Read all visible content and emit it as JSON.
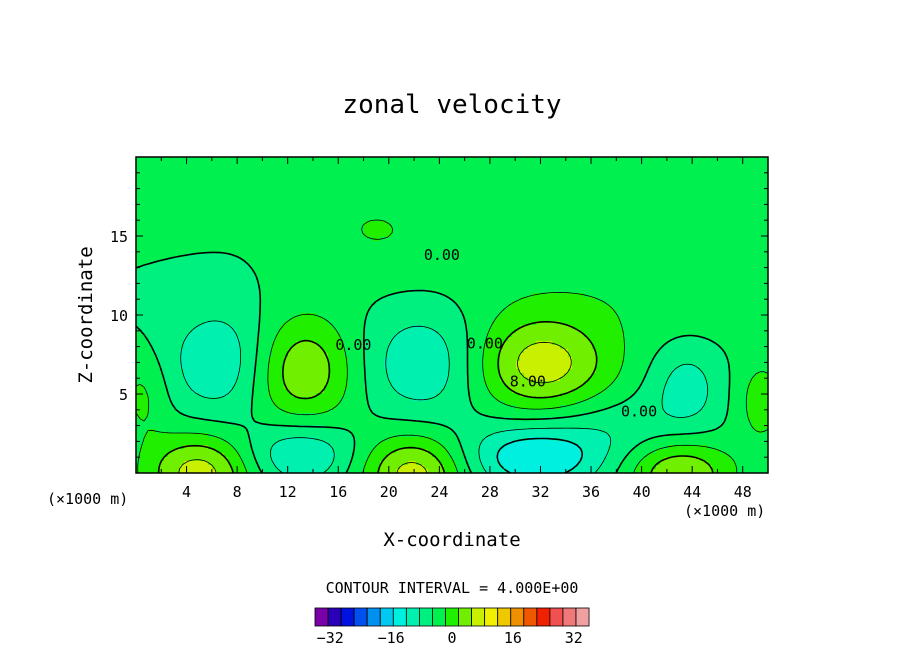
{
  "chart_data": {
    "type": "contour",
    "title": "zonal velocity",
    "xlabel": "X-coordinate",
    "ylabel": "Z-coordinate",
    "x_unit": "(×1000 m)",
    "y_unit": "(×1000 m)",
    "xlim": [
      0,
      50
    ],
    "ylim": [
      0,
      20
    ],
    "x_ticks": [
      4,
      8,
      12,
      16,
      20,
      24,
      28,
      32,
      36,
      40,
      44,
      48
    ],
    "y_ticks": [
      5,
      10,
      15
    ],
    "contour_interval_text": "CONTOUR INTERVAL = 4.000E+00",
    "contour_labels": [
      {
        "text": "0.00",
        "x": 24.2,
        "z": 13.8
      },
      {
        "text": "0.00",
        "x": 17.2,
        "z": 8.1
      },
      {
        "text": "0.00",
        "x": 27.6,
        "z": 8.2
      },
      {
        "text": "8.00",
        "x": 31.0,
        "z": 5.8
      },
      {
        "text": "0.00",
        "x": 39.8,
        "z": 3.9
      }
    ],
    "colorbar": {
      "min": -36,
      "max": 36,
      "step": 4,
      "tick_values": [
        -32,
        -16,
        0,
        16,
        32
      ],
      "tick_labels": [
        "−32",
        "−16",
        "0",
        "16",
        "32"
      ],
      "colors": [
        "#7a00a8",
        "#2a00b8",
        "#0012e0",
        "#0050f0",
        "#0090f0",
        "#00c8f0",
        "#00f0e0",
        "#00f0b0",
        "#00f080",
        "#00f050",
        "#20f000",
        "#70f000",
        "#c8f000",
        "#f0f000",
        "#f0c800",
        "#f09000",
        "#f05800",
        "#f02000",
        "#f05050",
        "#f07878",
        "#f0a0a0"
      ]
    },
    "fields": [
      {
        "level": "positive",
        "x": 0,
        "z": 18.0,
        "value": 4,
        "sx": 6,
        "sz": 1.6
      },
      {
        "level": "positive",
        "x": 19,
        "z": 15.5,
        "value": 4,
        "sx": 4,
        "sz": 2.0
      },
      {
        "level": "positive",
        "x": 40,
        "z": 11.5,
        "value": 3,
        "sx": 12,
        "sz": 2.5
      },
      {
        "level": "positive",
        "x": 13,
        "z": 6.5,
        "value": 12,
        "sx": 3.0,
        "sz": 2.5
      },
      {
        "level": "positive",
        "x": 32,
        "z": 6.8,
        "value": 14,
        "sx": 4.0,
        "sz": 2.2
      },
      {
        "level": "positive",
        "x": 5,
        "z": 0.0,
        "value": 14,
        "sx": 3.0,
        "sz": 1.8
      },
      {
        "level": "positive",
        "x": 22,
        "z": 0.0,
        "value": 14,
        "sx": 3.0,
        "sz": 1.8
      },
      {
        "level": "positive",
        "x": 43,
        "z": 0.0,
        "value": 12,
        "sx": 3.0,
        "sz": 1.5
      },
      {
        "level": "positive",
        "x": 49.5,
        "z": 4.5,
        "value": 6,
        "sx": 1.5,
        "sz": 2.0
      },
      {
        "level": "positive",
        "x": 0.5,
        "z": 5.0,
        "value": 5,
        "sx": 1.5,
        "sz": 2.0
      },
      {
        "level": "negative",
        "x": 7,
        "z": 7.0,
        "value": -8,
        "sx": 3.2,
        "sz": 2.5
      },
      {
        "level": "negative",
        "x": 23,
        "z": 7.0,
        "value": -8,
        "sx": 3.5,
        "sz": 2.5
      },
      {
        "level": "negative",
        "x": 13,
        "z": 1.2,
        "value": -9,
        "sx": 3.0,
        "sz": 1.4
      },
      {
        "level": "negative",
        "x": 31.5,
        "z": 1.0,
        "value": -12,
        "sx": 4.0,
        "sz": 1.5
      },
      {
        "level": "negative",
        "x": 43.5,
        "z": 5.5,
        "value": -6,
        "sx": 2.0,
        "sz": 2.0
      },
      {
        "level": "negative",
        "x": 38,
        "z": 3.0,
        "value": -3,
        "sx": 4.0,
        "sz": 1.5
      }
    ]
  }
}
